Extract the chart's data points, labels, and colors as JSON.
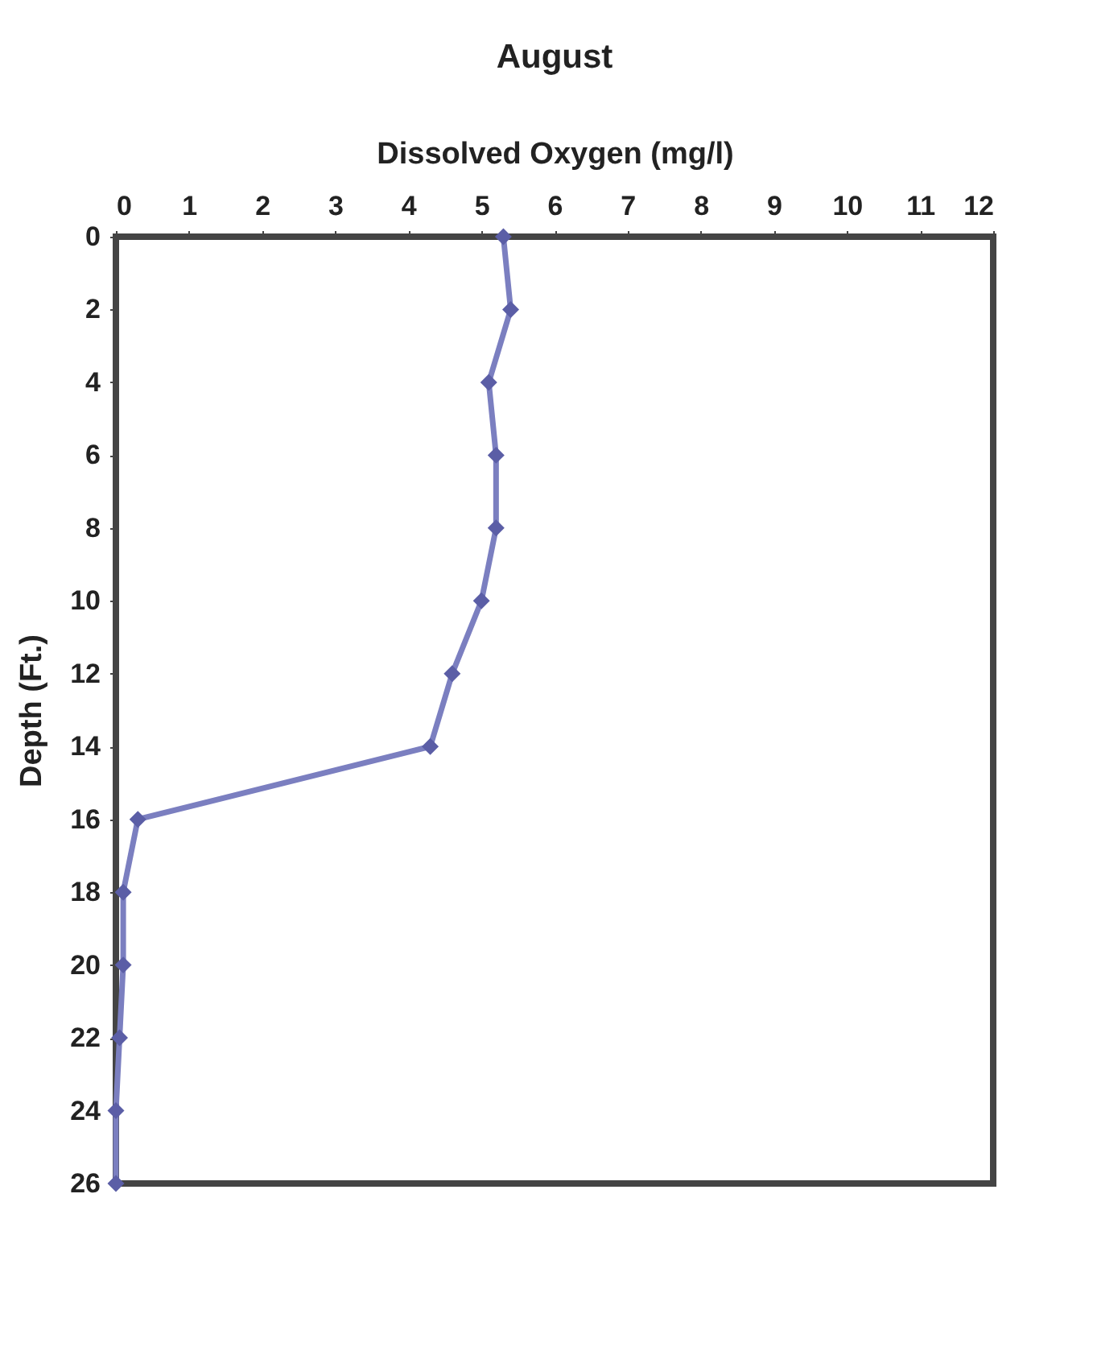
{
  "chart_data": {
    "type": "line",
    "title": "August",
    "xlabel": "Dissolved Oxygen (mg/l)",
    "ylabel": "Depth (Ft.)",
    "series": [
      {
        "color": "#7b7fc0",
        "x": [
          5.3,
          5.4,
          5.1,
          5.2,
          5.2,
          5.0,
          4.6,
          4.3,
          0.3,
          0.1,
          0.1,
          0.05,
          0,
          0
        ],
        "values": [
          0,
          2,
          4,
          6,
          8,
          10,
          12,
          14,
          16,
          18,
          20,
          22,
          24,
          26
        ]
      }
    ],
    "xlim": [
      0,
      12
    ],
    "xticks": [
      0,
      1,
      2,
      3,
      4,
      5,
      6,
      7,
      8,
      9,
      10,
      11,
      12
    ],
    "ylim": [
      26,
      0
    ],
    "yticks": [
      0,
      2,
      4,
      6,
      8,
      10,
      12,
      14,
      16,
      18,
      20,
      22,
      24,
      26
    ],
    "grid": false,
    "legend": false,
    "marker": "diamond",
    "line_style": "solid"
  }
}
